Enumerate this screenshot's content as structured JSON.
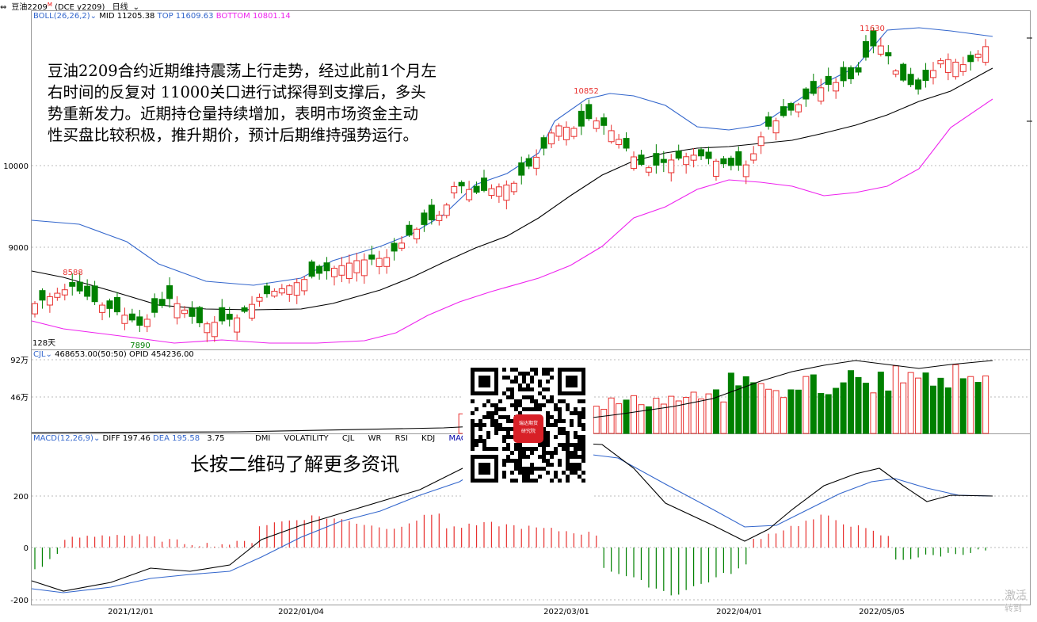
{
  "titlebar": {
    "icon": "window-restore-icon",
    "symbol": "豆油2209",
    "superscript": "M",
    "code": "(DCE y2209)",
    "period": "日线"
  },
  "boll": {
    "label": "BOLL(26,26,2)",
    "mid": "MID 11205.38",
    "top": "TOP 11609.63",
    "bottom": "BOTTOM 10801.14",
    "colors": {
      "mid": "#000000",
      "top": "#3366cc",
      "bottom": "#ee22ee"
    }
  },
  "price_axis": [
    "10000",
    "9000"
  ],
  "price_marks": {
    "high1": "8588",
    "low1": "7890",
    "high2": "10852",
    "high3": "11630"
  },
  "days_label": "128天",
  "cjl": {
    "label": "CJL",
    "value": "468653.00(50:50)",
    "opid": "OPID 454236.00",
    "axis": [
      "92万",
      "46万"
    ]
  },
  "macd": {
    "label": "MACD(12,26,9)",
    "diff": "DIFF 197.46",
    "dea": "DEA 195.58",
    "macd_val": "3.75",
    "axis": [
      "200",
      "0",
      "-200"
    ]
  },
  "indicator_tabs": [
    "DMI",
    "VOLATILITY",
    "CJL",
    "WR",
    "RSI",
    "KDJ",
    "MACD"
  ],
  "date_axis": [
    "2021/12/01",
    "2022/01/04",
    "2022/03/01",
    "2022/04/01",
    "2022/05/05"
  ],
  "annotation": [
    "豆油2209合约近期维持震荡上行走势，经过此前1个月左",
    "右时间的反复对 11000关口进行试探得到支撑后，多头",
    "势重新发力。近期持仓量持续增加，表明市场资金主动",
    "性买盘比较积极，推升期价，预计后期维持强势运行。"
  ],
  "qr": {
    "badge_line1": "瑞达期货",
    "badge_line2": "研究院",
    "caption": "长按二维码了解更多资讯"
  },
  "watermark": {
    "line1": "激活",
    "line2": "转到"
  },
  "colors": {
    "up": "#e8312f",
    "down": "#008000",
    "grid": "#bbbbbb",
    "frame": "#999999"
  }
}
